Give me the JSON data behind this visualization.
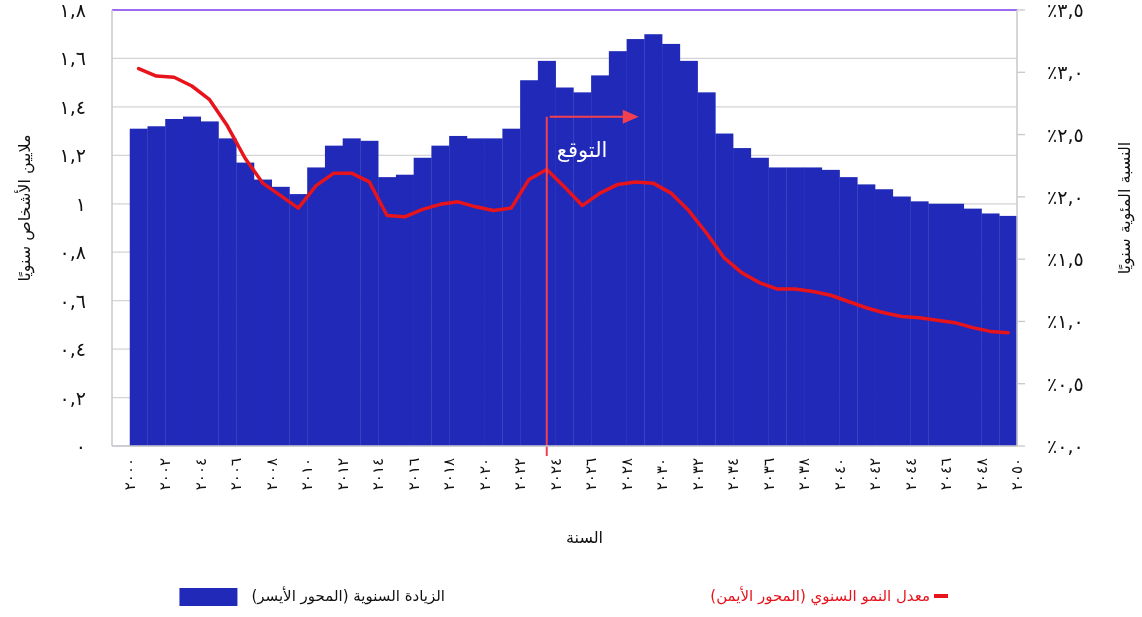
{
  "chart_data": {
    "type": "bar",
    "xlabel": "السنة",
    "ylabel": "ملايين الأشخاص سنويًا",
    "y2label": "النسبة المئوية سنويًا",
    "x": [
      2000.5,
      2001.5,
      2002.5,
      2003.5,
      2004.5,
      2005.5,
      2006.5,
      2007.5,
      2008.5,
      2009.5,
      2010.5,
      2011.5,
      2012.5,
      2013.5,
      2014.5,
      2015.5,
      2016.5,
      2017.5,
      2018.5,
      2019.5,
      2020.5,
      2021.5,
      2022.5,
      2023.5,
      2024.5,
      2025.5,
      2026.5,
      2027.5,
      2028.5,
      2029.5,
      2030.5,
      2031.5,
      2032.5,
      2033.5,
      2034.5,
      2035.5,
      2036.5,
      2037.5,
      2038.5,
      2039.5,
      2040.5,
      2041.5,
      2042.5,
      2043.5,
      2044.5,
      2045.5,
      2046.5,
      2047.5,
      2048.5,
      2049.5
    ],
    "series": [
      {
        "type": "bar",
        "name": "الزيادة السنوية (المحور الأيسر)",
        "color": "#2029b8",
        "values": [
          1.31,
          1.32,
          1.35,
          1.36,
          1.34,
          1.27,
          1.17,
          1.1,
          1.07,
          1.04,
          1.15,
          1.24,
          1.27,
          1.26,
          1.11,
          1.12,
          1.19,
          1.24,
          1.28,
          1.27,
          1.27,
          1.31,
          1.51,
          1.59,
          1.48,
          1.46,
          1.53,
          1.63,
          1.68,
          1.7,
          1.66,
          1.59,
          1.46,
          1.29,
          1.23,
          1.19,
          1.15,
          1.15,
          1.15,
          1.14,
          1.11,
          1.08,
          1.06,
          1.03,
          1.01,
          1.0,
          1.0,
          0.98,
          0.96,
          0.95
        ]
      },
      {
        "type": "line",
        "axis": "y2",
        "name": "معدل النمو السنوي (المحور الأيمن)",
        "color": "#e8141c",
        "values": [
          3.03,
          2.97,
          2.96,
          2.89,
          2.78,
          2.57,
          2.31,
          2.11,
          2.01,
          1.91,
          2.09,
          2.19,
          2.19,
          2.12,
          1.85,
          1.84,
          1.9,
          1.94,
          1.96,
          1.92,
          1.89,
          1.91,
          2.14,
          2.22,
          2.08,
          1.93,
          2.03,
          2.1,
          2.12,
          2.11,
          2.03,
          1.89,
          1.71,
          1.51,
          1.39,
          1.31,
          1.26,
          1.26,
          1.24,
          1.21,
          1.16,
          1.11,
          1.07,
          1.04,
          1.03,
          1.01,
          0.99,
          0.95,
          0.92,
          0.91
        ]
      }
    ],
    "xlim": [
      1999,
      2050
    ],
    "xticks": [
      {
        "value": 2000,
        "label": "٢٠٠٠"
      },
      {
        "value": 2002,
        "label": "٢٠٠٢"
      },
      {
        "value": 2004,
        "label": "٢٠٠٤"
      },
      {
        "value": 2006,
        "label": "٢٠٠٦"
      },
      {
        "value": 2008,
        "label": "٢٠٠٨"
      },
      {
        "value": 2010,
        "label": "٢٠١٠"
      },
      {
        "value": 2012,
        "label": "٢٠١٢"
      },
      {
        "value": 2014,
        "label": "٢٠١٤"
      },
      {
        "value": 2016,
        "label": "٢٠١٦"
      },
      {
        "value": 2018,
        "label": "٢٠١٨"
      },
      {
        "value": 2020,
        "label": "٢٠٢٠"
      },
      {
        "value": 2022,
        "label": "٢٠٢٢"
      },
      {
        "value": 2024,
        "label": "٢٠٢٤"
      },
      {
        "value": 2026,
        "label": "٢٠٢٦"
      },
      {
        "value": 2028,
        "label": "٢٠٢٨"
      },
      {
        "value": 2030,
        "label": "٢٠٣٠"
      },
      {
        "value": 2032,
        "label": "٢٠٣٢"
      },
      {
        "value": 2034,
        "label": "٢٠٣٤"
      },
      {
        "value": 2036,
        "label": "٢٠٣٦"
      },
      {
        "value": 2038,
        "label": "٢٠٣٨"
      },
      {
        "value": 2040,
        "label": "٢٠٤٠"
      },
      {
        "value": 2042,
        "label": "٢٠٤٢"
      },
      {
        "value": 2044,
        "label": "٢٠٤٤"
      },
      {
        "value": 2046,
        "label": "٢٠٤٦"
      },
      {
        "value": 2048,
        "label": "٢٠٤٨"
      },
      {
        "value": 2050,
        "label": "٢٠٥٠"
      }
    ],
    "ylim": [
      0,
      1.8
    ],
    "yticks": [
      {
        "value": 0,
        "label": "٠"
      },
      {
        "value": 0.2,
        "label": "٠,٢"
      },
      {
        "value": 0.4,
        "label": "٠,٤"
      },
      {
        "value": 0.6,
        "label": "٠,٦"
      },
      {
        "value": 0.8,
        "label": "٠,٨"
      },
      {
        "value": 1,
        "label": "١"
      },
      {
        "value": 1.2,
        "label": "١,٢"
      },
      {
        "value": 1.4,
        "label": "١,٤"
      },
      {
        "value": 1.6,
        "label": "١,٦"
      },
      {
        "value": 1.8,
        "label": "١,٨"
      }
    ],
    "y2lim": [
      0,
      3.5
    ],
    "y2ticks": [
      {
        "value": 0,
        "label": "٪٠,٠"
      },
      {
        "value": 0.5,
        "label": "٪٠,٥"
      },
      {
        "value": 1,
        "label": "٪١,٠"
      },
      {
        "value": 1.5,
        "label": "٪١,٥"
      },
      {
        "value": 2,
        "label": "٪٢,٠"
      },
      {
        "value": 2.5,
        "label": "٪٢,٥"
      },
      {
        "value": 3,
        "label": "٪٣,٠"
      },
      {
        "value": 3.5,
        "label": "٪٣,٥"
      }
    ],
    "ref_lines": [
      {
        "axis": "x",
        "value": 2023.5,
        "label": "التوقع",
        "color": "#f2404e"
      }
    ],
    "grid": "y",
    "legend": "bottom"
  }
}
